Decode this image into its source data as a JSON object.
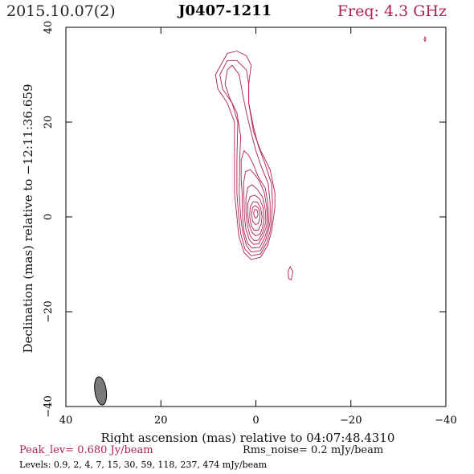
{
  "header": {
    "date": "2015.10.07(2)",
    "source": "J0407-1211",
    "freq": "Freq: 4.3 GHz"
  },
  "footer": {
    "peak": "Peak_lev=  0.680 Jy/beam",
    "rms": "Rms_noise=  0.2 mJy/beam",
    "levels": "Levels: 0.9,   2,   4,   7,  15,  30,  59, 118, 237, 474 mJy/beam"
  },
  "colors": {
    "contour": "#b0204c",
    "beam": "#7a7a7a",
    "axis": "#000000"
  },
  "chart_data": {
    "type": "contour",
    "xlabel": "Right ascension (mas) relative to 04:07:48.4310",
    "ylabel": "Declination (mas) relative to −12:11:36.659",
    "xlim": [
      40,
      -40
    ],
    "ylim": [
      -40,
      40
    ],
    "x_ticks": [
      40,
      20,
      0,
      -20,
      -40
    ],
    "x_tick_labels": [
      "40",
      "20",
      "0",
      "−20",
      "−40"
    ],
    "y_ticks": [
      -40,
      -20,
      0,
      20,
      40
    ],
    "y_tick_labels": [
      "−40",
      "−20",
      "0",
      "20",
      "40"
    ],
    "beam": {
      "x": 32.7,
      "y": -36.7,
      "major_mas": 6.0,
      "minor_mas": 2.4,
      "pa_deg": -8
    },
    "core": {
      "x": 0.0,
      "y": 0.8,
      "peak_jy_per_beam": 0.68
    },
    "contour_levels_mjy": [
      0.9,
      2,
      4,
      7,
      15,
      30,
      59,
      118,
      237,
      474
    ],
    "contours": [
      {
        "level": 0.9,
        "points": [
          [
            -3.6,
            -1
          ],
          [
            -4,
            2
          ],
          [
            -4,
            5
          ],
          [
            -3,
            10
          ],
          [
            -1,
            14
          ],
          [
            0.5,
            18
          ],
          [
            1.5,
            24
          ],
          [
            1.5,
            28
          ],
          [
            1,
            32
          ],
          [
            2,
            34
          ],
          [
            4,
            35
          ],
          [
            6,
            34.5
          ],
          [
            8.5,
            30
          ],
          [
            8,
            27
          ],
          [
            6,
            24
          ],
          [
            4.5,
            20
          ],
          [
            4.5,
            12
          ],
          [
            4.5,
            5
          ],
          [
            4,
            0
          ],
          [
            3.6,
            -4
          ],
          [
            2.5,
            -7.5
          ],
          [
            1,
            -9
          ],
          [
            -1,
            -8.5
          ],
          [
            -2.5,
            -6
          ],
          [
            -3.3,
            -3
          ]
        ]
      },
      {
        "level": 2,
        "points": [
          [
            -3.3,
            -1
          ],
          [
            -3.5,
            3
          ],
          [
            -3.3,
            7
          ],
          [
            -2,
            11
          ],
          [
            -0.5,
            15
          ],
          [
            0.5,
            19
          ],
          [
            1.5,
            24
          ],
          [
            1.5,
            28
          ],
          [
            2,
            31
          ],
          [
            4,
            33
          ],
          [
            6,
            33
          ],
          [
            7.6,
            30
          ],
          [
            7,
            27
          ],
          [
            5,
            24
          ],
          [
            3.8,
            20
          ],
          [
            4,
            12
          ],
          [
            4,
            5
          ],
          [
            3.6,
            0
          ],
          [
            3.2,
            -3.5
          ],
          [
            2.3,
            -6.8
          ],
          [
            1,
            -8.2
          ],
          [
            -1,
            -7.8
          ],
          [
            -2.3,
            -5.4
          ],
          [
            -3,
            -3
          ]
        ]
      },
      {
        "level": 4,
        "points": [
          [
            -3,
            -1
          ],
          [
            -3,
            3
          ],
          [
            -2.6,
            7
          ],
          [
            -1,
            11
          ],
          [
            0,
            14
          ],
          [
            0.8,
            17
          ],
          [
            2,
            22
          ],
          [
            2.8,
            26
          ],
          [
            3.5,
            30
          ],
          [
            5,
            32
          ],
          [
            6,
            31
          ],
          [
            6.5,
            28
          ],
          [
            5.5,
            25
          ],
          [
            4,
            22
          ],
          [
            3.2,
            17
          ],
          [
            3.4,
            12
          ],
          [
            3.5,
            5
          ],
          [
            3.2,
            0
          ],
          [
            2.8,
            -3
          ],
          [
            2,
            -6
          ],
          [
            1,
            -7.4
          ],
          [
            -1,
            -7.1
          ],
          [
            -2.1,
            -4.8
          ],
          [
            -2.7,
            -2.6
          ]
        ]
      },
      {
        "level": 7,
        "points": [
          [
            -2.7,
            -1
          ],
          [
            -2.5,
            3
          ],
          [
            -2,
            6
          ],
          [
            -0.5,
            8.5
          ],
          [
            0.5,
            11
          ],
          [
            1.5,
            13
          ],
          [
            2.5,
            14
          ],
          [
            3.1,
            12
          ],
          [
            3.1,
            8
          ],
          [
            2.9,
            5
          ],
          [
            2.8,
            0
          ],
          [
            2.5,
            -3
          ],
          [
            1.8,
            -5.5
          ],
          [
            0.8,
            -6.6
          ],
          [
            -0.8,
            -6.4
          ],
          [
            -1.9,
            -4.3
          ],
          [
            -2.5,
            -2.3
          ]
        ]
      },
      {
        "level": 15,
        "points": [
          [
            -2.4,
            -1
          ],
          [
            -2.3,
            2
          ],
          [
            -1.8,
            5
          ],
          [
            -0.8,
            7.5
          ],
          [
            0.3,
            9
          ],
          [
            1.2,
            10
          ],
          [
            2.2,
            9.5
          ],
          [
            2.6,
            7
          ],
          [
            2.5,
            4
          ],
          [
            2.4,
            0
          ],
          [
            2.1,
            -2.6
          ],
          [
            1.4,
            -4.8
          ],
          [
            0.5,
            -5.8
          ],
          [
            -0.6,
            -5.7
          ],
          [
            -1.6,
            -3.8
          ],
          [
            -2.2,
            -2.1
          ]
        ]
      },
      {
        "level": 30,
        "points": [
          [
            -2.1,
            -1
          ],
          [
            -2,
            1.5
          ],
          [
            -1.4,
            4.2
          ],
          [
            -0.3,
            5.8
          ],
          [
            0.8,
            6.8
          ],
          [
            1.7,
            6.2
          ],
          [
            2.1,
            4
          ],
          [
            2.1,
            1
          ],
          [
            1.8,
            -1.8
          ],
          [
            1.2,
            -4
          ],
          [
            0.4,
            -5
          ],
          [
            -0.6,
            -4.9
          ],
          [
            -1.4,
            -3.3
          ],
          [
            -1.9,
            -1.8
          ]
        ]
      },
      {
        "level": 59,
        "points": [
          [
            -1.7,
            -0.5
          ],
          [
            -1.5,
            2
          ],
          [
            -0.8,
            3.8
          ],
          [
            0.2,
            4.6
          ],
          [
            1.2,
            4.3
          ],
          [
            1.7,
            2.8
          ],
          [
            1.7,
            0.5
          ],
          [
            1.4,
            -1.8
          ],
          [
            0.8,
            -3.3
          ],
          [
            0,
            -4
          ],
          [
            -0.9,
            -3.6
          ],
          [
            -1.4,
            -2.2
          ]
        ]
      },
      {
        "level": 118,
        "points": [
          [
            -1.3,
            0
          ],
          [
            -1,
            1.9
          ],
          [
            -0.3,
            3.1
          ],
          [
            0.6,
            3.2
          ],
          [
            1.2,
            2.1
          ],
          [
            1.3,
            0
          ],
          [
            1,
            -1.8
          ],
          [
            0.4,
            -2.8
          ],
          [
            -0.5,
            -2.8
          ],
          [
            -1.1,
            -1.6
          ]
        ]
      },
      {
        "level": 237,
        "points": [
          [
            -0.9,
            0.4
          ],
          [
            -0.6,
            1.8
          ],
          [
            0.1,
            2.4
          ],
          [
            0.7,
            2
          ],
          [
            0.9,
            0.6
          ],
          [
            0.7,
            -0.9
          ],
          [
            0.1,
            -1.6
          ],
          [
            -0.5,
            -1.4
          ],
          [
            -0.8,
            -0.6
          ]
        ]
      },
      {
        "level": 474,
        "points": [
          [
            -0.45,
            0.6
          ],
          [
            -0.2,
            1.5
          ],
          [
            0.25,
            1.6
          ],
          [
            0.45,
            0.9
          ],
          [
            0.35,
            0.1
          ],
          [
            0,
            -0.25
          ],
          [
            -0.35,
            0.1
          ]
        ]
      },
      {
        "level": 0.9,
        "points": [
          [
            -7.2,
            -10.5
          ],
          [
            -7.8,
            -11.5
          ],
          [
            -7.4,
            -13.3
          ],
          [
            -6.9,
            -13
          ],
          [
            -6.8,
            -11.5
          ]
        ]
      },
      {
        "level": 0.9,
        "points": [
          [
            -35.6,
            37
          ],
          [
            -35.8,
            37.6
          ],
          [
            -35.6,
            38
          ],
          [
            -35.4,
            37.5
          ]
        ]
      }
    ]
  }
}
